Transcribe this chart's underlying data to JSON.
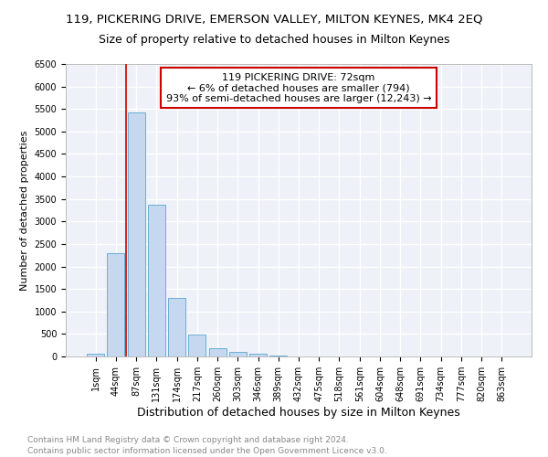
{
  "title": "119, PICKERING DRIVE, EMERSON VALLEY, MILTON KEYNES, MK4 2EQ",
  "subtitle": "Size of property relative to detached houses in Milton Keynes",
  "xlabel": "Distribution of detached houses by size in Milton Keynes",
  "ylabel": "Number of detached properties",
  "footnote1": "Contains HM Land Registry data © Crown copyright and database right 2024.",
  "footnote2": "Contains public sector information licensed under the Open Government Licence v3.0.",
  "annotation_line1": "119 PICKERING DRIVE: 72sqm",
  "annotation_line2": "← 6% of detached houses are smaller (794)",
  "annotation_line3": "93% of semi-detached houses are larger (12,243) →",
  "bar_labels": [
    "1sqm",
    "44sqm",
    "87sqm",
    "131sqm",
    "174sqm",
    "217sqm",
    "260sqm",
    "303sqm",
    "346sqm",
    "389sqm",
    "432sqm",
    "475sqm",
    "518sqm",
    "561sqm",
    "604sqm",
    "648sqm",
    "691sqm",
    "734sqm",
    "777sqm",
    "820sqm",
    "863sqm"
  ],
  "bar_values": [
    65,
    2300,
    5430,
    3380,
    1300,
    480,
    190,
    105,
    65,
    30,
    10,
    5,
    3,
    2,
    1,
    1,
    0,
    0,
    0,
    0,
    0
  ],
  "bar_color": "#c5d8f0",
  "bar_edge_color": "#6baed6",
  "vline_x": 1.5,
  "vline_color": "#cc0000",
  "ylim": [
    0,
    6500
  ],
  "yticks": [
    0,
    500,
    1000,
    1500,
    2000,
    2500,
    3000,
    3500,
    4000,
    4500,
    5000,
    5500,
    6000,
    6500
  ],
  "annotation_box_color": "#cc0000",
  "bg_color": "#eef2f8",
  "grid_color": "#ffffff",
  "fig_bg_color": "#ffffff",
  "title_fontsize": 9.5,
  "subtitle_fontsize": 9,
  "xlabel_fontsize": 9,
  "ylabel_fontsize": 8,
  "tick_fontsize": 7,
  "annotation_fontsize": 8,
  "footnote_fontsize": 6.5,
  "footnote_color": "#888888"
}
